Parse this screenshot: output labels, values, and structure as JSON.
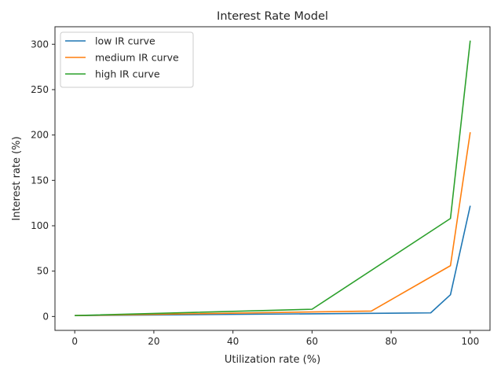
{
  "chart_data": {
    "type": "line",
    "title": "Interest Rate Model",
    "xlabel": "Utilization rate (%)",
    "ylabel": "Interest rate (%)",
    "xlim": [
      -5,
      105
    ],
    "ylim": [
      -15.3,
      319.3
    ],
    "xticks": [
      0,
      20,
      40,
      60,
      80,
      100
    ],
    "yticks": [
      0,
      50,
      100,
      150,
      200,
      250,
      300
    ],
    "grid": false,
    "legend_position": "upper-left",
    "series": [
      {
        "name": "low IR curve",
        "color": "#1f77b4",
        "x": [
          0,
          90,
          95,
          100
        ],
        "y": [
          1,
          4,
          24,
          122
        ]
      },
      {
        "name": "medium IR curve",
        "color": "#ff7f0e",
        "x": [
          0,
          75,
          95,
          100
        ],
        "y": [
          1,
          6,
          56,
          203
        ]
      },
      {
        "name": "high IR curve",
        "color": "#2ca02c",
        "x": [
          0,
          60,
          95,
          100
        ],
        "y": [
          1,
          8,
          108,
          304
        ]
      }
    ]
  }
}
